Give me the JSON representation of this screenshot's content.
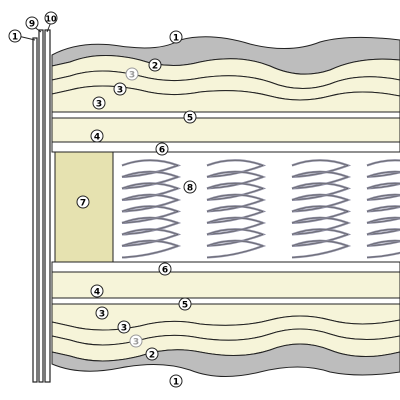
{
  "diagram": {
    "colors": {
      "cover": "#bdbdbd",
      "foam": "#f6f4d9",
      "board": "#ffffff",
      "coil": "#8f8fa3",
      "block": "#e6e2b0",
      "outline": "#222222",
      "background": "#ffffff"
    },
    "callouts": {
      "panel_left_outer": "1",
      "panel_left_mid": "9",
      "panel_left_inner": "10",
      "top_cover": "1",
      "top_layer_a": "2",
      "top_layer_b": "3",
      "top_layer_c": "3",
      "top_layer_d": "3",
      "top_board": "5",
      "top_foam": "4",
      "top_pad": "6",
      "edge_block": "7",
      "spring_unit": "8",
      "bottom_pad": "6",
      "bottom_foam": "4",
      "bottom_board": "5",
      "bottom_layer_a": "3",
      "bottom_layer_b": "3",
      "bottom_layer_c": "3",
      "bottom_layer_d": "2",
      "bottom_cover": "1"
    }
  }
}
